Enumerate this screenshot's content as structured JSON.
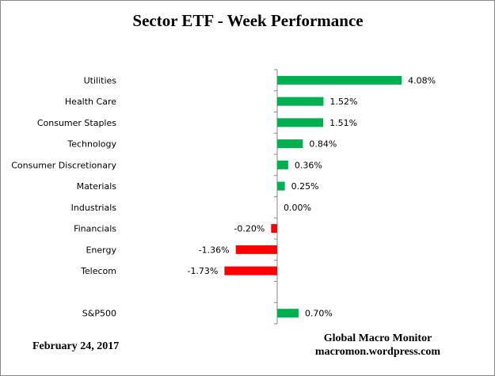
{
  "chart_data": {
    "type": "bar",
    "orientation": "horizontal",
    "title": "Sector ETF - Week Performance",
    "categories": [
      "Utilities",
      "Health Care",
      "Consumer Staples",
      "Technology",
      "Consumer Discretionary",
      "Materials",
      "Industrials",
      "Financials",
      "Energy",
      "Telecom",
      "",
      "S&P500"
    ],
    "values": [
      4.08,
      1.52,
      1.51,
      0.84,
      0.36,
      0.25,
      0.0,
      -0.2,
      -1.36,
      -1.73,
      null,
      0.7
    ],
    "labels": [
      "4.08%",
      "1.52%",
      "1.51%",
      "0.84%",
      "0.36%",
      "0.25%",
      "0.00%",
      "-0.20%",
      "-1.36%",
      "-1.73%",
      "",
      "0.70%"
    ],
    "unit": "%",
    "colors": {
      "positive": "#00B050",
      "negative": "#FF0000",
      "axis": "#868686"
    },
    "grid": false,
    "legend": "none"
  },
  "footer": {
    "date": "February 24, 2017",
    "source_name": "Global Macro Monitor",
    "source_site": "macromon.wordpress.com"
  }
}
